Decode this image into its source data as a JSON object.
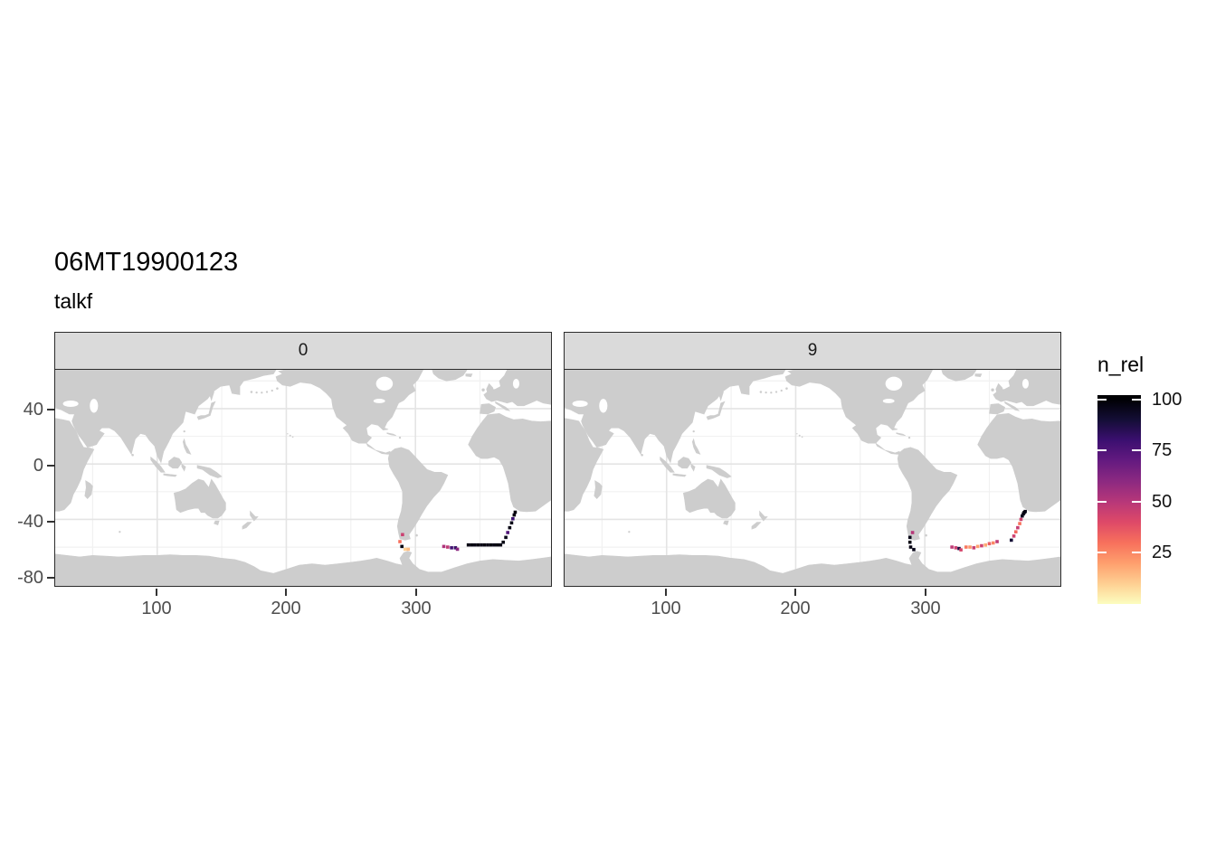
{
  "title": "06MT19900123",
  "subtitle": "talkf",
  "facets": [
    {
      "label": "0"
    },
    {
      "label": "9"
    }
  ],
  "x_axis": {
    "tick_labels": [
      "100",
      "200",
      "300"
    ],
    "tick_values": [
      100,
      200,
      300
    ]
  },
  "y_axis": {
    "tick_labels": [
      "40",
      "0",
      "-40",
      "-80"
    ],
    "tick_values": [
      40,
      0,
      -40,
      -80
    ]
  },
  "legend": {
    "title": "n_rel",
    "tick_labels": [
      "100",
      "75",
      "50",
      "25"
    ],
    "tick_values": [
      100,
      75,
      50,
      25
    ],
    "range": [
      0,
      100
    ],
    "position": "right"
  },
  "colors": {
    "background": "#FFFFFF",
    "strip_background": "#DADADA",
    "panel_border": "#2B2B2B",
    "land": "#CDCDCD",
    "ocean": "#FFFFFF",
    "grid_major": "#E4E4E4",
    "grid_minor": "#F1F1F1",
    "axis_text": "#4D4D4D",
    "colormap_low": "#FCFDBF",
    "colormap_mid": "#B73779",
    "colormap_high": "#000004"
  },
  "chart_data": {
    "type": "scatter",
    "subtype": "faceted-world-map-points",
    "title": "06MT19900123",
    "subtitle": "talkf",
    "facet_values": [
      "0",
      "9"
    ],
    "xlabel": "",
    "ylabel": "",
    "x_ticks": [
      100,
      200,
      300
    ],
    "y_ticks": [
      40,
      0,
      -40,
      -80
    ],
    "xlim": [
      21,
      405
    ],
    "ylim": [
      -88,
      68
    ],
    "grid": true,
    "legend_title": "n_rel",
    "colormap": "magma-reversed (high=dark)",
    "color_range": [
      0,
      100
    ],
    "series": [
      {
        "facet": "0",
        "points_lon_lat_nrel": [
          [
            290,
            -51,
            45
          ],
          [
            288,
            -56,
            30
          ],
          [
            289.5,
            -59.5,
            98
          ],
          [
            292,
            -61.5,
            10
          ],
          [
            294.5,
            -61.5,
            14
          ],
          [
            322,
            -59.5,
            52
          ],
          [
            325,
            -60,
            48
          ],
          [
            328,
            -60.5,
            78
          ],
          [
            331,
            -60.5,
            82
          ],
          [
            332.5,
            -61.5,
            60
          ],
          [
            341,
            -58.4,
            97
          ],
          [
            343.5,
            -58.4,
            98
          ],
          [
            346,
            -58.4,
            97
          ],
          [
            348.5,
            -58.4,
            98
          ],
          [
            351,
            -58.4,
            97
          ],
          [
            353.5,
            -58.4,
            98
          ],
          [
            356,
            -58.4,
            97
          ],
          [
            358.5,
            -58.4,
            98
          ],
          [
            361,
            -58.4,
            97
          ],
          [
            363.5,
            -58.4,
            98
          ],
          [
            366,
            -58.4,
            97
          ],
          [
            368,
            -56.5,
            97
          ],
          [
            370,
            -53,
            96
          ],
          [
            371.5,
            -49.5,
            75
          ],
          [
            373,
            -46,
            97
          ],
          [
            374.5,
            -42.5,
            96
          ],
          [
            375.5,
            -39.5,
            80
          ],
          [
            376.5,
            -36.8,
            98
          ],
          [
            377.3,
            -34.8,
            98
          ]
        ]
      },
      {
        "facet": "9",
        "points_lon_lat_nrel": [
          [
            288.5,
            -53,
            96
          ],
          [
            288.5,
            -56.5,
            97
          ],
          [
            289,
            -60,
            97
          ],
          [
            291.5,
            -61.8,
            96
          ],
          [
            290.5,
            -49.5,
            50
          ],
          [
            321,
            -60,
            48
          ],
          [
            324,
            -60.5,
            45
          ],
          [
            326.5,
            -61,
            88
          ],
          [
            328,
            -62,
            42
          ],
          [
            332,
            -60,
            28
          ],
          [
            335,
            -60,
            22
          ],
          [
            338,
            -60.5,
            46
          ],
          [
            341,
            -59.5,
            20
          ],
          [
            344,
            -59,
            44
          ],
          [
            347,
            -58.5,
            18
          ],
          [
            350,
            -57.5,
            35
          ],
          [
            353,
            -57,
            25
          ],
          [
            356,
            -56,
            48
          ],
          [
            367,
            -55,
            90
          ],
          [
            369,
            -52,
            44
          ],
          [
            370.5,
            -49,
            32
          ],
          [
            372,
            -46,
            46
          ],
          [
            373.5,
            -43,
            30
          ],
          [
            374.5,
            -40,
            44
          ],
          [
            375.5,
            -37.5,
            95
          ],
          [
            376.3,
            -36,
            97
          ],
          [
            377,
            -35,
            98
          ],
          [
            377.8,
            -34.3,
            97
          ]
        ]
      }
    ]
  }
}
